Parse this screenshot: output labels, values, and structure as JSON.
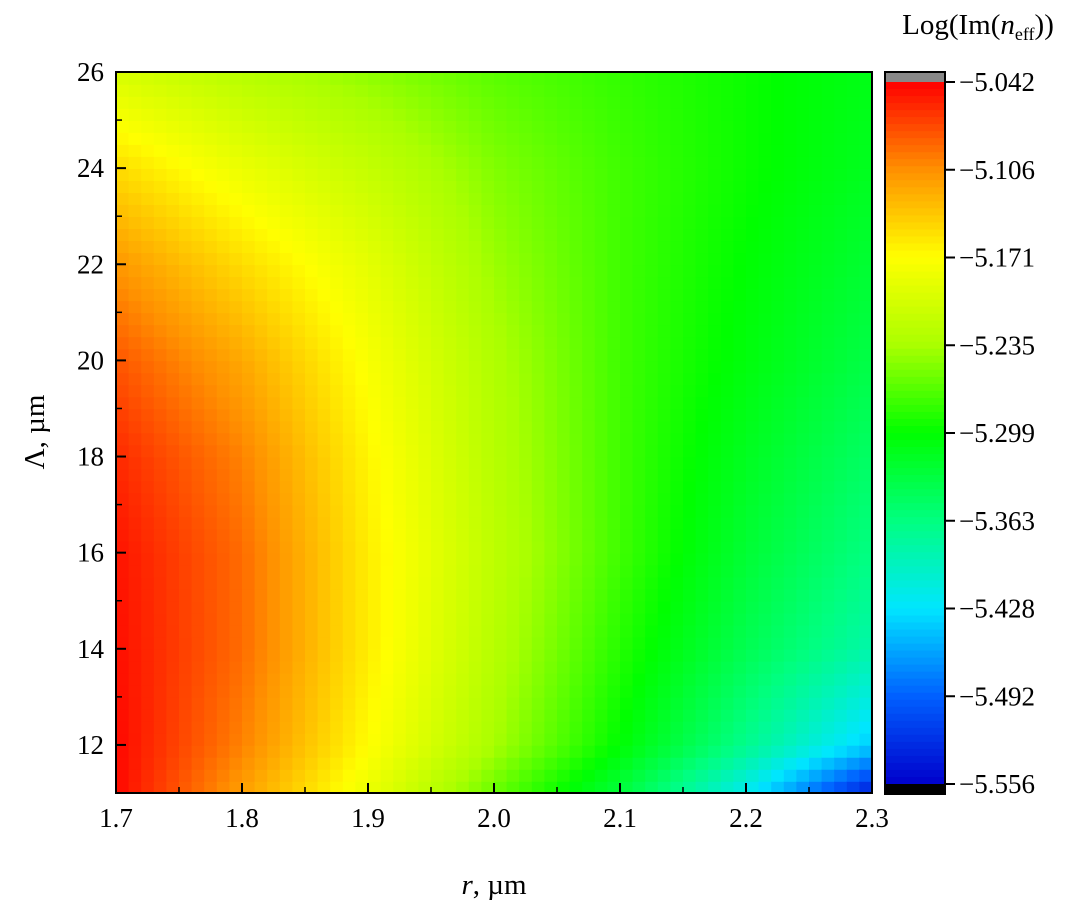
{
  "chart_data": {
    "type": "heatmap",
    "xlabel": {
      "var": "r",
      "rest": ", µm"
    },
    "ylabel": "Λ, µm",
    "xlim": [
      1.7,
      2.3
    ],
    "ylim": [
      11,
      26
    ],
    "x_ticks": [
      "1.7",
      "1.8",
      "1.9",
      "2.0",
      "2.1",
      "2.2",
      "2.3"
    ],
    "y_ticks": [
      "12",
      "14",
      "16",
      "18",
      "20",
      "22",
      "24",
      "26"
    ],
    "colorbar": {
      "title": {
        "prefix": "Log(Im(",
        "var": "n",
        "sub": "eff",
        "suffix": "))"
      },
      "range": [
        -5.556,
        -5.042
      ],
      "ticks": [
        "−5.042",
        "−5.106",
        "−5.171",
        "−5.235",
        "−5.299",
        "−5.363",
        "−5.428",
        "−5.492",
        "−5.556"
      ],
      "colormap": [
        "#0000cc",
        "#0060ff",
        "#00e6ff",
        "#00ff80",
        "#00ff00",
        "#aaff00",
        "#ffff00",
        "#ff9000",
        "#ff0000"
      ],
      "over_color": "#888888",
      "under_color": "#000000"
    },
    "x": [
      1.7,
      1.8,
      1.9,
      2.0,
      2.1,
      2.2,
      2.3
    ],
    "y": [
      11,
      12,
      14,
      16,
      18,
      20,
      22,
      24,
      26
    ],
    "z": [
      [
        -5.045,
        -5.115,
        -5.185,
        -5.26,
        -5.33,
        -5.42,
        -5.54
      ],
      [
        -5.045,
        -5.1,
        -5.17,
        -5.235,
        -5.3,
        -5.37,
        -5.44
      ],
      [
        -5.048,
        -5.09,
        -5.16,
        -5.225,
        -5.285,
        -5.34,
        -5.385
      ],
      [
        -5.05,
        -5.09,
        -5.16,
        -5.22,
        -5.275,
        -5.325,
        -5.365
      ],
      [
        -5.06,
        -5.1,
        -5.165,
        -5.225,
        -5.275,
        -5.315,
        -5.35
      ],
      [
        -5.08,
        -5.12,
        -5.175,
        -5.23,
        -5.275,
        -5.305,
        -5.335
      ],
      [
        -5.11,
        -5.15,
        -5.19,
        -5.24,
        -5.275,
        -5.3,
        -5.325
      ],
      [
        -5.15,
        -5.185,
        -5.215,
        -5.25,
        -5.275,
        -5.295,
        -5.315
      ],
      [
        -5.2,
        -5.225,
        -5.245,
        -5.265,
        -5.28,
        -5.295,
        -5.31
      ]
    ]
  }
}
